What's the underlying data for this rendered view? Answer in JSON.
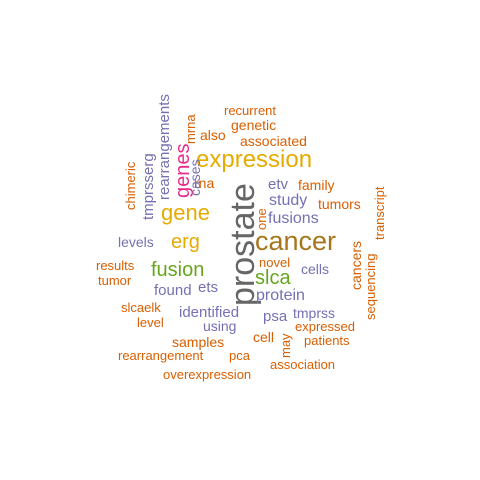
{
  "colors": {
    "orange": "#D95F02",
    "purple": "#7570B3",
    "magenta": "#E7298A",
    "green": "#66A61E",
    "gold": "#E6AB02",
    "brown": "#A6761D",
    "gray": "#666666"
  },
  "words": [
    {
      "text": "prostate",
      "color": "gray"
    },
    {
      "text": "cancer",
      "color": "brown"
    },
    {
      "text": "expression",
      "color": "gold"
    },
    {
      "text": "gene",
      "color": "gold"
    },
    {
      "text": "genes",
      "color": "magenta"
    },
    {
      "text": "erg",
      "color": "gold"
    },
    {
      "text": "slca",
      "color": "green"
    },
    {
      "text": "fusion",
      "color": "green"
    },
    {
      "text": "fusions",
      "color": "purple"
    },
    {
      "text": "study",
      "color": "purple"
    },
    {
      "text": "etv",
      "color": "purple"
    },
    {
      "text": "family",
      "color": "orange"
    },
    {
      "text": "tumors",
      "color": "orange"
    },
    {
      "text": "cancers",
      "color": "orange"
    },
    {
      "text": "sequencing",
      "color": "orange"
    },
    {
      "text": "transcript",
      "color": "orange"
    },
    {
      "text": "cells",
      "color": "purple"
    },
    {
      "text": "novel",
      "color": "orange"
    },
    {
      "text": "one",
      "color": "orange"
    },
    {
      "text": "protein",
      "color": "purple"
    },
    {
      "text": "psa",
      "color": "purple"
    },
    {
      "text": "tmprss",
      "color": "purple"
    },
    {
      "text": "expressed",
      "color": "orange"
    },
    {
      "text": "patients",
      "color": "orange"
    },
    {
      "text": "cell",
      "color": "orange"
    },
    {
      "text": "may",
      "color": "orange"
    },
    {
      "text": "association",
      "color": "orange"
    },
    {
      "text": "associated",
      "color": "orange"
    },
    {
      "text": "genetic",
      "color": "orange"
    },
    {
      "text": "recurrent",
      "color": "orange"
    },
    {
      "text": "also",
      "color": "orange"
    },
    {
      "text": "mrna",
      "color": "orange"
    },
    {
      "text": "rna",
      "color": "orange"
    },
    {
      "text": "cases",
      "color": "purple"
    },
    {
      "text": "rearrangements",
      "color": "purple"
    },
    {
      "text": "tmprsserg",
      "color": "purple"
    },
    {
      "text": "chimeric",
      "color": "orange"
    },
    {
      "text": "levels",
      "color": "purple"
    },
    {
      "text": "results",
      "color": "orange"
    },
    {
      "text": "tumor",
      "color": "orange"
    },
    {
      "text": "found",
      "color": "purple"
    },
    {
      "text": "ets",
      "color": "purple"
    },
    {
      "text": "slcaelk",
      "color": "orange"
    },
    {
      "text": "level",
      "color": "orange"
    },
    {
      "text": "identified",
      "color": "purple"
    },
    {
      "text": "using",
      "color": "purple"
    },
    {
      "text": "samples",
      "color": "orange"
    },
    {
      "text": "rearrangement",
      "color": "orange"
    },
    {
      "text": "pca",
      "color": "orange"
    },
    {
      "text": "overexpression",
      "color": "orange"
    }
  ]
}
